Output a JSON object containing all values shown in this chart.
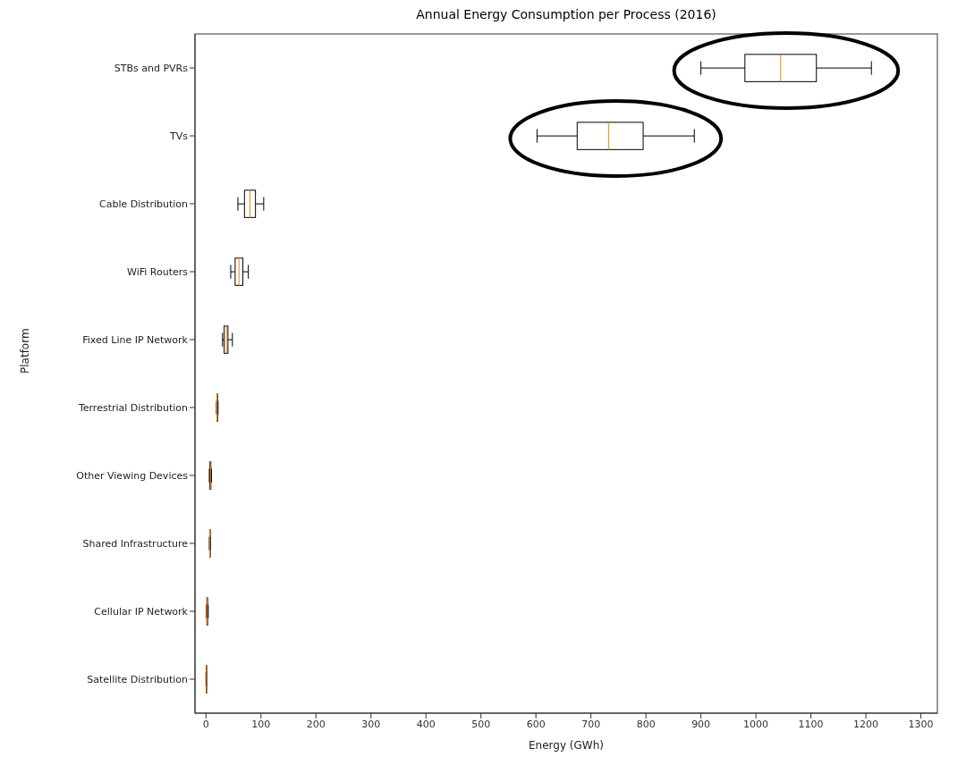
{
  "chart_data": {
    "type": "box",
    "orientation": "horizontal",
    "title": "Annual Energy Consumption per Process (2016)",
    "xlabel": "Energy (GWh)",
    "ylabel": "Platform",
    "categories": [
      "STBs and PVRs",
      "TVs",
      "Cable Distribution",
      "WiFi Routers",
      "Fixed Line IP Network",
      "Terrestrial Distribution",
      "Other Viewing Devices",
      "Shared Infrastructure",
      "Cellular IP Network",
      "Satellite Distribution"
    ],
    "boxes": [
      {
        "low": 900,
        "q1": 980,
        "median": 1045,
        "q3": 1110,
        "high": 1210
      },
      {
        "low": 602,
        "q1": 675,
        "median": 732,
        "q3": 795,
        "high": 888
      },
      {
        "low": 58,
        "q1": 70,
        "median": 80,
        "q3": 90,
        "high": 105
      },
      {
        "low": 45,
        "q1": 53,
        "median": 60,
        "q3": 67,
        "high": 77
      },
      {
        "low": 30,
        "q1": 33,
        "median": 37,
        "q3": 40,
        "high": 48
      },
      {
        "low": 19,
        "q1": 20,
        "median": 20,
        "q3": 21,
        "high": 22
      },
      {
        "low": 6,
        "q1": 7,
        "median": 8,
        "q3": 9,
        "high": 10
      },
      {
        "low": 6,
        "q1": 7,
        "median": 7,
        "q3": 7,
        "high": 8
      },
      {
        "low": 1,
        "q1": 1.5,
        "median": 2,
        "q3": 3,
        "high": 4
      },
      {
        "low": 0,
        "q1": 0.5,
        "median": 1,
        "q3": 1,
        "high": 1
      }
    ],
    "xlim": [
      -20,
      1330
    ],
    "xticks": [
      0,
      100,
      200,
      300,
      400,
      500,
      600,
      700,
      800,
      900,
      1000,
      1100,
      1200,
      1300
    ]
  }
}
